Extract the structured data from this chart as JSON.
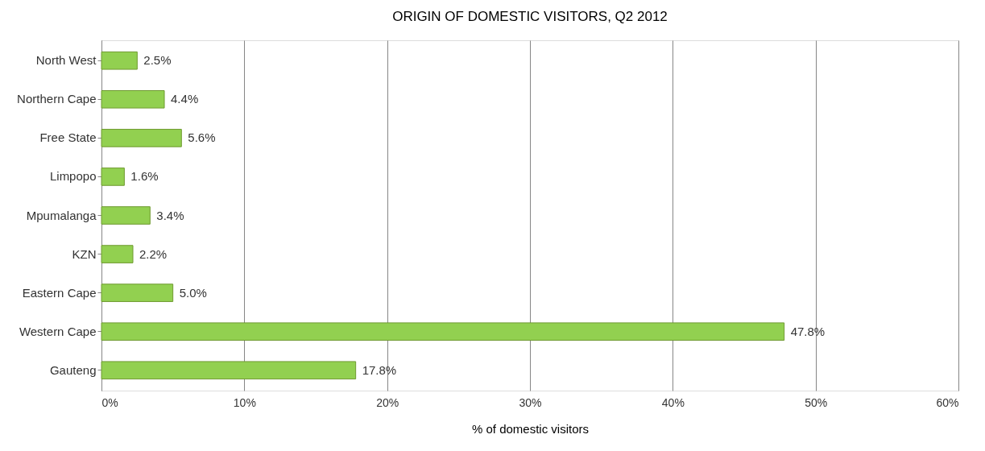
{
  "chart_data": {
    "type": "bar",
    "orientation": "horizontal",
    "title": "ORIGIN OF DOMESTIC VISITORS, Q2 2012",
    "xlabel": "% of domestic visitors",
    "categories": [
      "North West",
      "Northern Cape",
      "Free State",
      "Limpopo",
      "Mpumalanga",
      "KZN",
      "Eastern Cape",
      "Western Cape",
      "Gauteng"
    ],
    "values": [
      2.5,
      4.4,
      5.6,
      1.6,
      3.4,
      2.2,
      5.0,
      47.8,
      17.8
    ],
    "value_labels": [
      "2.5%",
      "4.4%",
      "5.6%",
      "1.6%",
      "3.4%",
      "2.2%",
      "5.0%",
      "47.8%",
      "17.8%"
    ],
    "color": "#92d050",
    "xlim": [
      0,
      60
    ],
    "xticks": [
      {
        "value": 0,
        "label": "0%"
      },
      {
        "value": 10,
        "label": "10%"
      },
      {
        "value": 20,
        "label": "20%"
      },
      {
        "value": 30,
        "label": "30%"
      },
      {
        "value": 40,
        "label": "40%"
      },
      {
        "value": 50,
        "label": "50%"
      },
      {
        "value": 60,
        "label": "60%"
      }
    ],
    "grid": "x"
  }
}
